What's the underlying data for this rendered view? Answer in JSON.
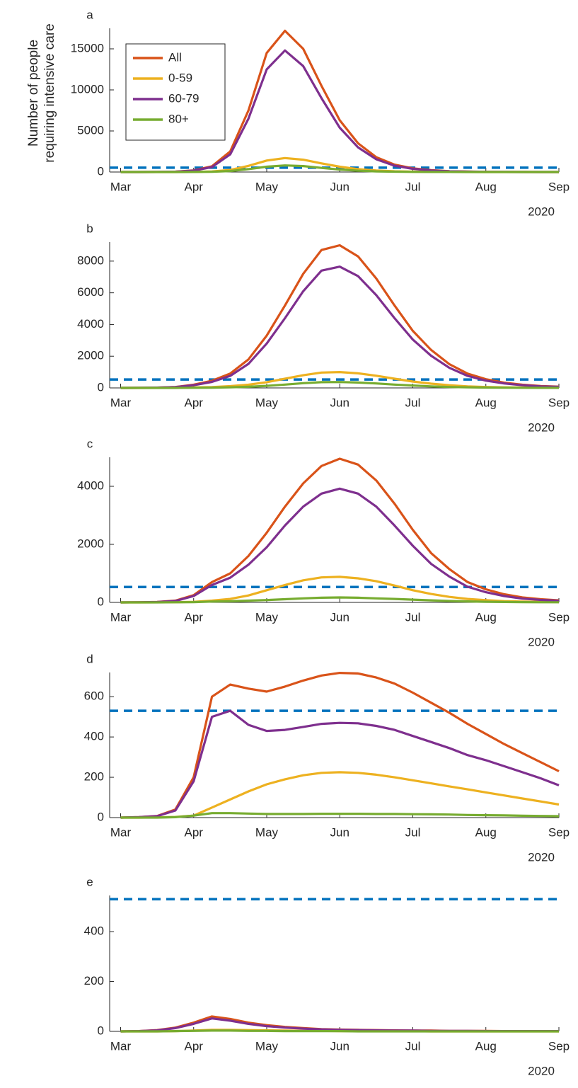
{
  "chart_data": [
    {
      "type": "line",
      "title": "a",
      "ylabel": [
        "Number of people",
        "requiring intensive care"
      ],
      "x_secondary_label": "2020",
      "x": [
        3,
        3.25,
        3.5,
        3.75,
        4,
        4.25,
        4.5,
        4.75,
        5,
        5.25,
        5.5,
        5.75,
        6,
        6.25,
        6.5,
        6.75,
        7,
        7.25,
        7.5,
        7.75,
        8,
        8.25,
        8.5,
        8.75,
        9
      ],
      "xlim": [
        2.85,
        9
      ],
      "xticks": [
        {
          "value": 3,
          "label": "Mar"
        },
        {
          "value": 4,
          "label": "Apr"
        },
        {
          "value": 5,
          "label": "May"
        },
        {
          "value": 6,
          "label": "Jun"
        },
        {
          "value": 7,
          "label": "Jul"
        },
        {
          "value": 8,
          "label": "Aug"
        },
        {
          "value": 9,
          "label": "Sep"
        }
      ],
      "ylim": [
        0,
        17500
      ],
      "yticks": [
        0,
        5000,
        10000,
        15000
      ],
      "legend": "upper-left",
      "reference_line": {
        "value": 530,
        "color": "#0072bd",
        "style": "dashed"
      },
      "series": [
        {
          "name": "All",
          "color": "#d95319",
          "values": [
            0,
            0,
            10,
            40,
            200,
            700,
            2500,
            7500,
            14500,
            17200,
            15000,
            10500,
            6300,
            3500,
            1800,
            900,
            450,
            220,
            100,
            50,
            25,
            10,
            5,
            2,
            1
          ]
        },
        {
          "name": "0-59",
          "color": "#edb120",
          "values": [
            0,
            0,
            1,
            3,
            20,
            70,
            250,
            750,
            1400,
            1700,
            1500,
            1050,
            650,
            350,
            180,
            90,
            45,
            22,
            10,
            5,
            2,
            1,
            0,
            0,
            0
          ]
        },
        {
          "name": "60-79",
          "color": "#7e2f8e",
          "values": [
            0,
            0,
            8,
            35,
            170,
            600,
            2150,
            6500,
            12500,
            14800,
            12900,
            9000,
            5400,
            3000,
            1550,
            770,
            390,
            190,
            90,
            40,
            20,
            9,
            4,
            2,
            1
          ]
        },
        {
          "name": "80+",
          "color": "#77ac30",
          "values": [
            0,
            0,
            1,
            2,
            10,
            35,
            120,
            350,
            650,
            800,
            720,
            500,
            300,
            160,
            80,
            40,
            20,
            10,
            5,
            2,
            1,
            0,
            0,
            0,
            0
          ]
        }
      ]
    },
    {
      "type": "line",
      "title": "b",
      "x_secondary_label": "2020",
      "x": [
        3,
        3.25,
        3.5,
        3.75,
        4,
        4.25,
        4.5,
        4.75,
        5,
        5.25,
        5.5,
        5.75,
        6,
        6.25,
        6.5,
        6.75,
        7,
        7.25,
        7.5,
        7.75,
        8,
        8.25,
        8.5,
        8.75,
        9
      ],
      "xlim": [
        2.85,
        9
      ],
      "xticks": [
        {
          "value": 3,
          "label": "Mar"
        },
        {
          "value": 4,
          "label": "Apr"
        },
        {
          "value": 5,
          "label": "May"
        },
        {
          "value": 6,
          "label": "Jun"
        },
        {
          "value": 7,
          "label": "Jul"
        },
        {
          "value": 8,
          "label": "Aug"
        },
        {
          "value": 9,
          "label": "Sep"
        }
      ],
      "ylim": [
        0,
        9200
      ],
      "yticks": [
        0,
        2000,
        4000,
        6000,
        8000
      ],
      "reference_line": {
        "value": 530,
        "color": "#0072bd",
        "style": "dashed"
      },
      "series": [
        {
          "color": "#d95319",
          "values": [
            0,
            5,
            20,
            60,
            200,
            450,
            900,
            1800,
            3300,
            5200,
            7200,
            8700,
            9000,
            8300,
            6900,
            5200,
            3600,
            2400,
            1500,
            900,
            550,
            330,
            200,
            120,
            80
          ]
        },
        {
          "color": "#edb120",
          "values": [
            0,
            1,
            3,
            8,
            25,
            55,
            110,
            200,
            360,
            580,
            800,
            970,
            1000,
            920,
            770,
            580,
            400,
            270,
            170,
            100,
            60,
            36,
            22,
            13,
            9
          ]
        },
        {
          "color": "#7e2f8e",
          "values": [
            0,
            4,
            16,
            50,
            170,
            380,
            760,
            1520,
            2800,
            4400,
            6100,
            7400,
            7650,
            7050,
            5850,
            4400,
            3050,
            2030,
            1270,
            760,
            460,
            280,
            170,
            100,
            65
          ]
        },
        {
          "color": "#77ac30",
          "values": [
            0,
            0,
            1,
            2,
            8,
            18,
            35,
            70,
            130,
            210,
            300,
            360,
            370,
            340,
            280,
            210,
            150,
            100,
            60,
            35,
            22,
            13,
            8,
            5,
            3
          ]
        }
      ]
    },
    {
      "type": "line",
      "title": "c",
      "x_secondary_label": "2020",
      "x": [
        3,
        3.25,
        3.5,
        3.75,
        4,
        4.25,
        4.5,
        4.75,
        5,
        5.25,
        5.5,
        5.75,
        6,
        6.25,
        6.5,
        6.75,
        7,
        7.25,
        7.5,
        7.75,
        8,
        8.25,
        8.5,
        8.75,
        9
      ],
      "xlim": [
        2.85,
        9
      ],
      "xticks": [
        {
          "value": 3,
          "label": "Mar"
        },
        {
          "value": 4,
          "label": "Apr"
        },
        {
          "value": 5,
          "label": "May"
        },
        {
          "value": 6,
          "label": "Jun"
        },
        {
          "value": 7,
          "label": "Jul"
        },
        {
          "value": 8,
          "label": "Aug"
        },
        {
          "value": 9,
          "label": "Sep"
        }
      ],
      "ylim": [
        0,
        5000
      ],
      "yticks": [
        0,
        2000,
        4000
      ],
      "reference_line": {
        "value": 530,
        "color": "#0072bd",
        "style": "dashed"
      },
      "series": [
        {
          "color": "#d95319",
          "values": [
            0,
            5,
            15,
            60,
            250,
            700,
            1000,
            1600,
            2400,
            3300,
            4100,
            4700,
            4950,
            4750,
            4200,
            3400,
            2500,
            1700,
            1150,
            700,
            450,
            280,
            170,
            110,
            70
          ]
        },
        {
          "color": "#edb120",
          "values": [
            0,
            1,
            2,
            6,
            20,
            60,
            120,
            240,
            420,
            600,
            760,
            860,
            880,
            830,
            730,
            580,
            420,
            290,
            190,
            120,
            75,
            45,
            28,
            18,
            12
          ]
        },
        {
          "color": "#7e2f8e",
          "values": [
            0,
            4,
            12,
            50,
            220,
            600,
            850,
            1300,
            1900,
            2650,
            3300,
            3750,
            3920,
            3750,
            3300,
            2650,
            1950,
            1330,
            890,
            540,
            350,
            220,
            130,
            85,
            55
          ]
        },
        {
          "color": "#77ac30",
          "values": [
            0,
            0,
            1,
            4,
            10,
            30,
            40,
            60,
            80,
            110,
            140,
            160,
            170,
            160,
            140,
            120,
            95,
            70,
            50,
            35,
            22,
            14,
            9,
            6,
            4
          ]
        }
      ]
    },
    {
      "type": "line",
      "title": "d",
      "x_secondary_label": "2020",
      "x": [
        3,
        3.25,
        3.5,
        3.75,
        4,
        4.25,
        4.5,
        4.75,
        5,
        5.25,
        5.5,
        5.75,
        6,
        6.25,
        6.5,
        6.75,
        7,
        7.25,
        7.5,
        7.75,
        8,
        8.25,
        8.5,
        8.75,
        9
      ],
      "xlim": [
        2.85,
        9
      ],
      "xticks": [
        {
          "value": 3,
          "label": "Mar"
        },
        {
          "value": 4,
          "label": "Apr"
        },
        {
          "value": 5,
          "label": "May"
        },
        {
          "value": 6,
          "label": "Jun"
        },
        {
          "value": 7,
          "label": "Jul"
        },
        {
          "value": 8,
          "label": "Aug"
        },
        {
          "value": 9,
          "label": "Sep"
        }
      ],
      "ylim": [
        0,
        720
      ],
      "yticks": [
        0,
        200,
        400,
        600
      ],
      "reference_line": {
        "value": 530,
        "color": "#0072bd",
        "style": "dashed"
      },
      "series": [
        {
          "color": "#d95319",
          "values": [
            0,
            2,
            8,
            40,
            200,
            600,
            660,
            640,
            625,
            650,
            680,
            705,
            718,
            715,
            695,
            665,
            620,
            570,
            520,
            465,
            415,
            365,
            320,
            275,
            230
          ]
        },
        {
          "color": "#edb120",
          "values": [
            0,
            0,
            1,
            3,
            10,
            50,
            90,
            130,
            165,
            190,
            210,
            222,
            225,
            222,
            213,
            200,
            185,
            170,
            155,
            140,
            125,
            110,
            95,
            80,
            65
          ]
        },
        {
          "color": "#7e2f8e",
          "values": [
            0,
            2,
            7,
            35,
            180,
            500,
            530,
            460,
            430,
            435,
            450,
            465,
            470,
            468,
            455,
            435,
            405,
            375,
            345,
            310,
            285,
            255,
            225,
            195,
            160
          ]
        },
        {
          "color": "#77ac30",
          "values": [
            0,
            0,
            0,
            2,
            10,
            22,
            22,
            20,
            18,
            18,
            18,
            19,
            19,
            19,
            18,
            18,
            17,
            16,
            15,
            13,
            12,
            11,
            9,
            8,
            7
          ]
        }
      ]
    },
    {
      "type": "line",
      "title": "e",
      "x_secondary_label": "2020",
      "x": [
        3,
        3.25,
        3.5,
        3.75,
        4,
        4.25,
        4.5,
        4.75,
        5,
        5.25,
        5.5,
        5.75,
        6,
        6.25,
        6.5,
        6.75,
        7,
        7.25,
        7.5,
        7.75,
        8,
        8.25,
        8.5,
        8.75,
        9
      ],
      "xlim": [
        2.85,
        9
      ],
      "xticks": [
        {
          "value": 3,
          "label": "Mar"
        },
        {
          "value": 4,
          "label": "Apr"
        },
        {
          "value": 5,
          "label": "May"
        },
        {
          "value": 6,
          "label": "Jun"
        },
        {
          "value": 7,
          "label": "Jul"
        },
        {
          "value": 8,
          "label": "Aug"
        },
        {
          "value": 9,
          "label": "Sep"
        }
      ],
      "ylim": [
        0,
        545
      ],
      "yticks": [
        0,
        200,
        400
      ],
      "reference_line": {
        "value": 530,
        "color": "#0072bd",
        "style": "dashed"
      },
      "series": [
        {
          "color": "#d95319",
          "values": [
            0,
            1,
            5,
            15,
            35,
            60,
            50,
            35,
            25,
            18,
            13,
            9,
            7,
            6,
            5,
            4,
            3,
            3,
            2,
            2,
            2,
            1,
            1,
            1,
            1
          ]
        },
        {
          "color": "#edb120",
          "values": [
            0,
            0,
            0,
            1,
            3,
            6,
            6,
            5,
            4,
            3,
            2,
            2,
            1,
            1,
            1,
            1,
            1,
            0,
            0,
            0,
            0,
            0,
            0,
            0,
            0
          ]
        },
        {
          "color": "#7e2f8e",
          "values": [
            0,
            1,
            4,
            13,
            30,
            52,
            43,
            30,
            21,
            15,
            11,
            8,
            6,
            5,
            4,
            3,
            3,
            2,
            2,
            2,
            1,
            1,
            1,
            1,
            1
          ]
        },
        {
          "color": "#77ac30",
          "values": [
            0,
            0,
            0,
            1,
            2,
            3,
            3,
            2,
            2,
            1,
            1,
            1,
            1,
            0,
            0,
            0,
            0,
            0,
            0,
            0,
            0,
            0,
            0,
            0,
            0
          ]
        }
      ]
    }
  ]
}
